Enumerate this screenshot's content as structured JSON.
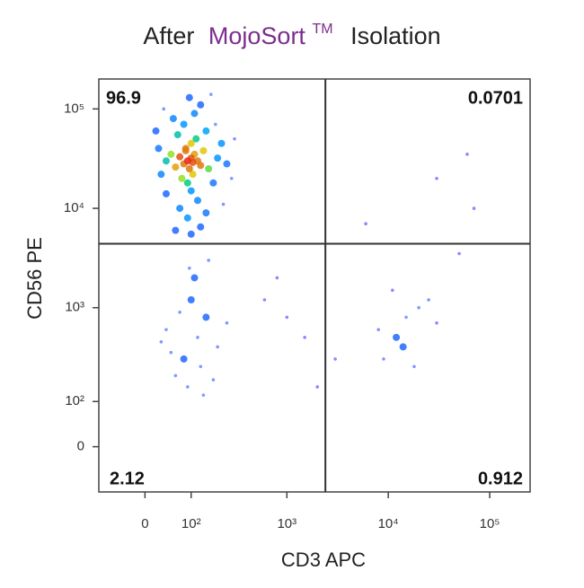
{
  "chart_data": {
    "type": "scatter",
    "title_parts": [
      "After",
      "MojoSort",
      "TM",
      "Isolation"
    ],
    "title_highlight_color": "#7b2d8e",
    "x_label": "CD3 APC",
    "y_label": "CD56 PE",
    "xscale": "biexponential",
    "yscale": "biexponential",
    "xlim": [
      -100,
      250000
    ],
    "ylim": [
      -100,
      200000
    ],
    "xticks": [
      0,
      {
        "value": 100,
        "label": "10²"
      },
      {
        "value": 1000,
        "label": "10³"
      },
      {
        "value": 10000,
        "label": "10⁴"
      },
      {
        "value": 100000,
        "label": "10⁵"
      }
    ],
    "yticks": [
      0,
      {
        "value": 100,
        "label": "10²"
      },
      {
        "value": 1000,
        "label": "10³"
      },
      {
        "value": 10000,
        "label": "10⁴"
      },
      {
        "value": 100000,
        "label": "10⁵"
      }
    ],
    "gates": {
      "x": 2400,
      "y": 4400
    },
    "quadrant_percentages": [
      96.9,
      0.0701,
      2.12,
      0.912
    ],
    "x": [
      90,
      100,
      80,
      110,
      95,
      120,
      70,
      85,
      105,
      130,
      60,
      100,
      75,
      140,
      90,
      115,
      50,
      160,
      100,
      65,
      150,
      40,
      200,
      120,
      80,
      180,
      30,
      110,
      70,
      220,
      55,
      130,
      25,
      250,
      90,
      150,
      40,
      95,
      190,
      60,
      280,
      20,
      170,
      100,
      230,
      35,
      300,
      130,
      85,
      105,
      80,
      120,
      60,
      150,
      100,
      200,
      40,
      90,
      130,
      70,
      250,
      110,
      160,
      50,
      180,
      95,
      140,
      30,
      12000,
      15000,
      9000,
      20000,
      14000,
      25000,
      8000,
      18000,
      30000,
      11000,
      1000,
      600,
      1500,
      3000,
      800,
      2000,
      6000,
      30000,
      60000,
      70000,
      50000
    ],
    "y": [
      30000,
      32000,
      28000,
      35000,
      25000,
      30000,
      33000,
      40000,
      22000,
      27000,
      26000,
      45000,
      20000,
      38000,
      18000,
      50000,
      35000,
      25000,
      15000,
      55000,
      60000,
      30000,
      32000,
      12000,
      70000,
      18000,
      22000,
      90000,
      10000,
      45000,
      80000,
      110000,
      40000,
      28000,
      8000,
      9000,
      14000,
      130000,
      70000,
      6000,
      20000,
      60000,
      140000,
      5500,
      11000,
      100000,
      50000,
      6500,
      38000,
      29000,
      300,
      500,
      200,
      800,
      1200,
      400,
      600,
      150,
      250,
      900,
      700,
      2000,
      3000,
      350,
      180,
      2500,
      120,
      450,
      500,
      800,
      300,
      1000,
      400,
      1200,
      600,
      250,
      700,
      1500,
      800,
      1200,
      500,
      300,
      2000,
      150,
      7000,
      20000,
      35000,
      10000,
      3500
    ]
  }
}
